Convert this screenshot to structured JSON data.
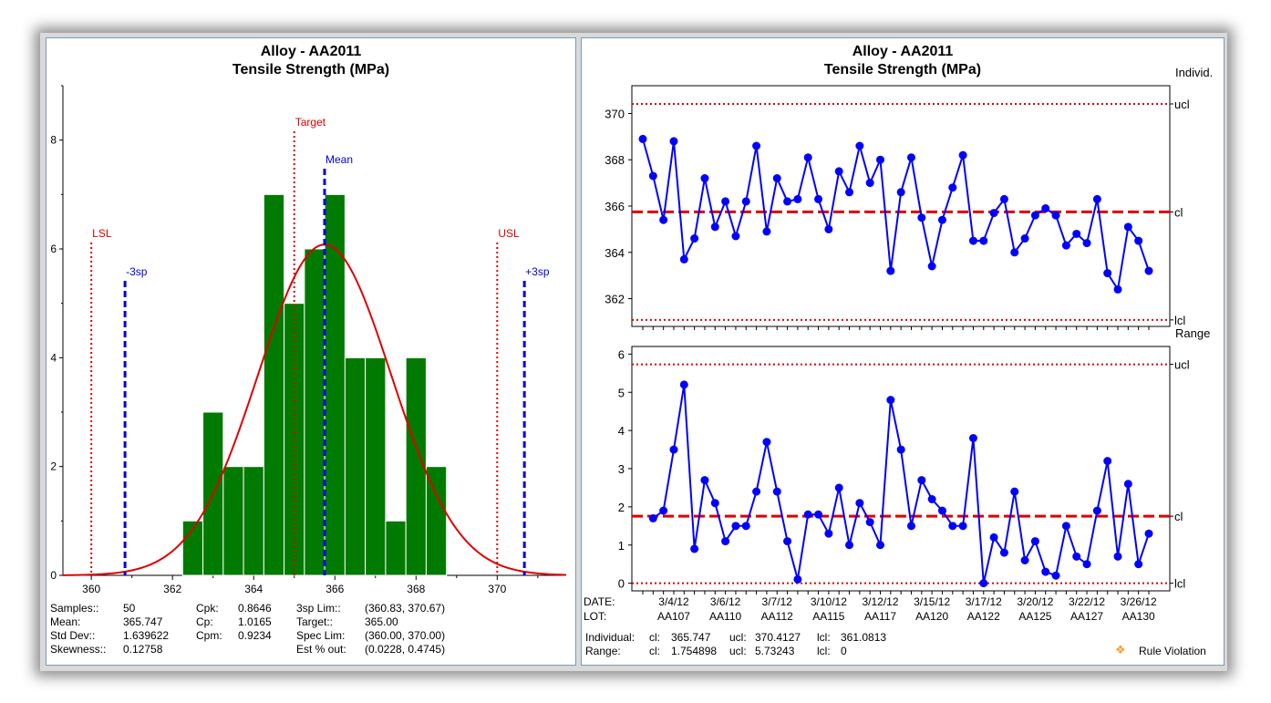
{
  "histogram": {
    "title": "Alloy - AA2011",
    "subtitle": "Tensile Strength (MPa)",
    "stats": {
      "samples_label": "Samples::",
      "samples": "50",
      "mean_label": "Mean:",
      "mean": "365.747",
      "stddev_label": "Std Dev::",
      "stddev": "1.639622",
      "skew_label": "Skewness::",
      "skew": "0.12758",
      "cpk_label": "Cpk:",
      "cpk": "0.8646",
      "cp_label": "Cp:",
      "cp": "1.0165",
      "cpm_label": "Cpm:",
      "cpm": "0.9234",
      "lim_label": "3sp Lim::",
      "lim": "(360.83, 370.67)",
      "target_label": "Target::",
      "target": "365.00",
      "spec_label": "Spec Lim:",
      "spec": "(360.00, 370.00)",
      "est_label": "Est % out:",
      "est": "(0.0228, 0.4745)"
    }
  },
  "control": {
    "title": "Alloy - AA2011",
    "subtitle": "Tensile Strength (MPa)",
    "indiv_label": "Individ.",
    "range_label": "Range",
    "date_label": "DATE:",
    "lot_label": "LOT:",
    "dates": [
      "3/4/12",
      "3/6/12",
      "3/7/12",
      "3/10/12",
      "3/12/12",
      "3/15/12",
      "3/17/12",
      "3/20/12",
      "3/22/12",
      "3/26/12"
    ],
    "lots": [
      "AA107",
      "AA110",
      "AA112",
      "AA115",
      "AA117",
      "AA120",
      "AA122",
      "AA125",
      "AA127",
      "AA130"
    ],
    "footer": {
      "ind_label": "Individual:",
      "ind_cl_label": "cl:",
      "ind_cl": "365.747",
      "ind_ucl_label": "ucl:",
      "ind_ucl": "370.4127",
      "ind_lcl_label": "lcl:",
      "ind_lcl": "361.0813",
      "rng_label": "Range:",
      "rng_cl_label": "cl:",
      "rng_cl": "1.754898",
      "rng_ucl_label": "ucl:",
      "rng_ucl": "5.73243",
      "rng_lcl_label": "lcl:",
      "rng_lcl": "0"
    },
    "legend_label": "Rule Violation",
    "legend_color": "#f0a030"
  },
  "colors": {
    "bar": "#007a00",
    "curve": "#e00000",
    "spec": "#e00000",
    "sigma": "#0000e0",
    "series": "#0000ff",
    "limit": "#e00000"
  },
  "chart_data": [
    {
      "type": "bar",
      "title": "Alloy - AA2011",
      "subtitle": "Tensile Strength (MPa)",
      "xlim": [
        359.3,
        371.7
      ],
      "ylim": [
        0,
        9
      ],
      "xticks": [
        "360",
        "362",
        "364",
        "366",
        "368",
        "370"
      ],
      "yticks": [
        "0",
        "2",
        "4",
        "6",
        "8"
      ],
      "bin_width": 0.5,
      "bin_starts": [
        362.25,
        362.75,
        363.25,
        363.75,
        364.25,
        364.75,
        365.25,
        365.75,
        366.25,
        366.75,
        367.25,
        367.75,
        368.25
      ],
      "values": [
        1,
        3,
        2,
        2,
        7,
        5,
        6,
        7,
        4,
        4,
        1,
        4,
        2
      ],
      "normal_curve": {
        "mean": 365.747,
        "sd": 1.639622,
        "peak": 6.08
      },
      "reference_lines": [
        {
          "label": "LSL",
          "x": 360.0,
          "kind": "spec"
        },
        {
          "label": "Target",
          "x": 365.0,
          "kind": "spec"
        },
        {
          "label": "USL",
          "x": 370.0,
          "kind": "spec"
        },
        {
          "label": "-3sp",
          "x": 360.83,
          "kind": "sigma"
        },
        {
          "label": "Mean",
          "x": 365.747,
          "kind": "sigma"
        },
        {
          "label": "+3sp",
          "x": 370.67,
          "kind": "sigma"
        }
      ]
    },
    {
      "type": "line",
      "title": "Alloy - AA2011",
      "subtitle": "Tensile Strength (MPa)",
      "ylim": [
        360.8,
        371.2
      ],
      "yticks": [
        "362",
        "364",
        "366",
        "368",
        "370"
      ],
      "values": [
        368.9,
        367.3,
        365.4,
        368.8,
        363.7,
        364.6,
        367.2,
        365.1,
        366.2,
        364.7,
        366.2,
        368.6,
        364.9,
        367.2,
        366.2,
        366.3,
        368.1,
        366.3,
        365.0,
        367.5,
        366.6,
        368.6,
        367.0,
        368.0,
        363.2,
        366.6,
        368.1,
        365.5,
        363.4,
        365.4,
        366.8,
        368.2,
        364.5,
        364.5,
        365.7,
        366.3,
        364.0,
        364.6,
        365.6,
        365.9,
        365.6,
        364.3,
        364.8,
        364.4,
        366.3,
        363.1,
        362.4,
        365.1,
        364.5,
        363.2
      ],
      "limits": [
        {
          "label": "ucl",
          "value": 370.4127
        },
        {
          "label": "cl",
          "value": 365.747
        },
        {
          "label": "lcl",
          "value": 361.0813
        }
      ]
    },
    {
      "type": "line",
      "ylim": [
        -0.2,
        6.2
      ],
      "yticks": [
        "0",
        "1",
        "2",
        "3",
        "4",
        "5",
        "6"
      ],
      "values": [
        1.7,
        1.9,
        3.5,
        5.2,
        0.9,
        2.7,
        2.1,
        1.1,
        1.5,
        1.5,
        2.4,
        3.7,
        2.4,
        1.1,
        0.1,
        1.8,
        1.8,
        1.3,
        2.5,
        1.0,
        2.1,
        1.6,
        1.0,
        4.8,
        3.5,
        1.5,
        2.7,
        2.2,
        1.9,
        1.5,
        1.5,
        3.8,
        0.0,
        1.2,
        0.8,
        2.4,
        0.6,
        1.1,
        0.3,
        0.2,
        1.5,
        0.7,
        0.5,
        1.9,
        3.2,
        0.7,
        2.6,
        0.5,
        1.3
      ],
      "limits": [
        {
          "label": "ucl",
          "value": 5.73243
        },
        {
          "label": "cl",
          "value": 1.754898
        },
        {
          "label": "lcl",
          "value": 0
        }
      ]
    }
  ]
}
